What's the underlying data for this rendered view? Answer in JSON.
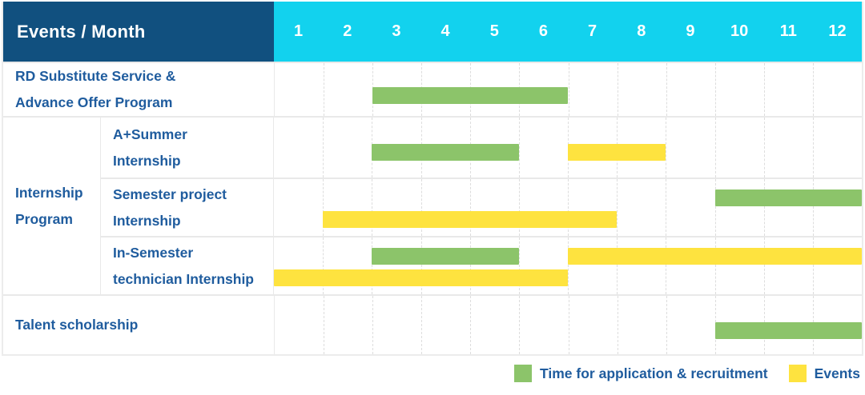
{
  "table": {
    "corner_label": "Events / Month",
    "months": [
      "1",
      "2",
      "3",
      "4",
      "5",
      "6",
      "7",
      "8",
      "9",
      "10",
      "11",
      "12"
    ]
  },
  "legend": {
    "items": [
      {
        "label": "Time for application & recruitment",
        "color": "#8cc46a"
      },
      {
        "label": "Events",
        "color": "#fee33f"
      }
    ]
  },
  "colors": {
    "header_blue": "#11507f",
    "header_cyan": "#12d2ee",
    "text_blue": "#1f5c9e",
    "green": "#8cc46a",
    "yellow": "#fee33f",
    "grid": "#e9e9e9",
    "column_line": "#dddddd"
  },
  "chart_data": {
    "type": "bar",
    "variant": "gantt",
    "title": "Events / Month",
    "x_axis": {
      "label": "Month",
      "ticks": [
        1,
        2,
        3,
        4,
        5,
        6,
        7,
        8,
        9,
        10,
        11,
        12
      ],
      "min": 1,
      "max": 12
    },
    "series_legend": [
      "Time for application & recruitment",
      "Events"
    ],
    "groups": [
      {
        "label": "Internship Program",
        "lines": [
          "Internship",
          "Program"
        ],
        "rows": [
          1,
          2,
          3
        ]
      }
    ],
    "rows": [
      {
        "label": "RD Substitute Service & Advance Offer Program",
        "lines": [
          "RD Substitute Service &",
          "Advance Offer Program"
        ],
        "group": null,
        "bars": [
          {
            "series": "Time for application & recruitment",
            "start_month": 3,
            "end_month": 6,
            "lane": "center"
          }
        ]
      },
      {
        "label": "A+Summer Internship",
        "lines": [
          "A+Summer",
          "Internship"
        ],
        "group": "Internship Program",
        "bars": [
          {
            "series": "Time for application & recruitment",
            "start_month": 3,
            "end_month": 5,
            "lane": "center"
          },
          {
            "series": "Events",
            "start_month": 7,
            "end_month": 8,
            "lane": "center"
          }
        ]
      },
      {
        "label": "Semester project Internship",
        "lines": [
          "Semester project",
          "Internship"
        ],
        "group": "Internship Program",
        "bars": [
          {
            "series": "Time for application & recruitment",
            "start_month": 10,
            "end_month": 12,
            "lane": "top"
          },
          {
            "series": "Events",
            "start_month": 2,
            "end_month": 7,
            "lane": "bottom"
          }
        ]
      },
      {
        "label": "In-Semester technician Internship",
        "lines": [
          "In-Semester",
          "technician Internship"
        ],
        "group": "Internship Program",
        "bars": [
          {
            "series": "Time for application & recruitment",
            "start_month": 3,
            "end_month": 5,
            "lane": "top"
          },
          {
            "series": "Events",
            "start_month": 7,
            "end_month": 12,
            "lane": "top"
          },
          {
            "series": "Events",
            "start_month": 1,
            "end_month": 6,
            "lane": "bottom"
          }
        ]
      },
      {
        "label": "Talent scholarship",
        "lines": [
          "Talent scholarship"
        ],
        "group": null,
        "bars": [
          {
            "series": "Time for application & recruitment",
            "start_month": 10,
            "end_month": 12,
            "lane": "center"
          }
        ]
      }
    ]
  }
}
